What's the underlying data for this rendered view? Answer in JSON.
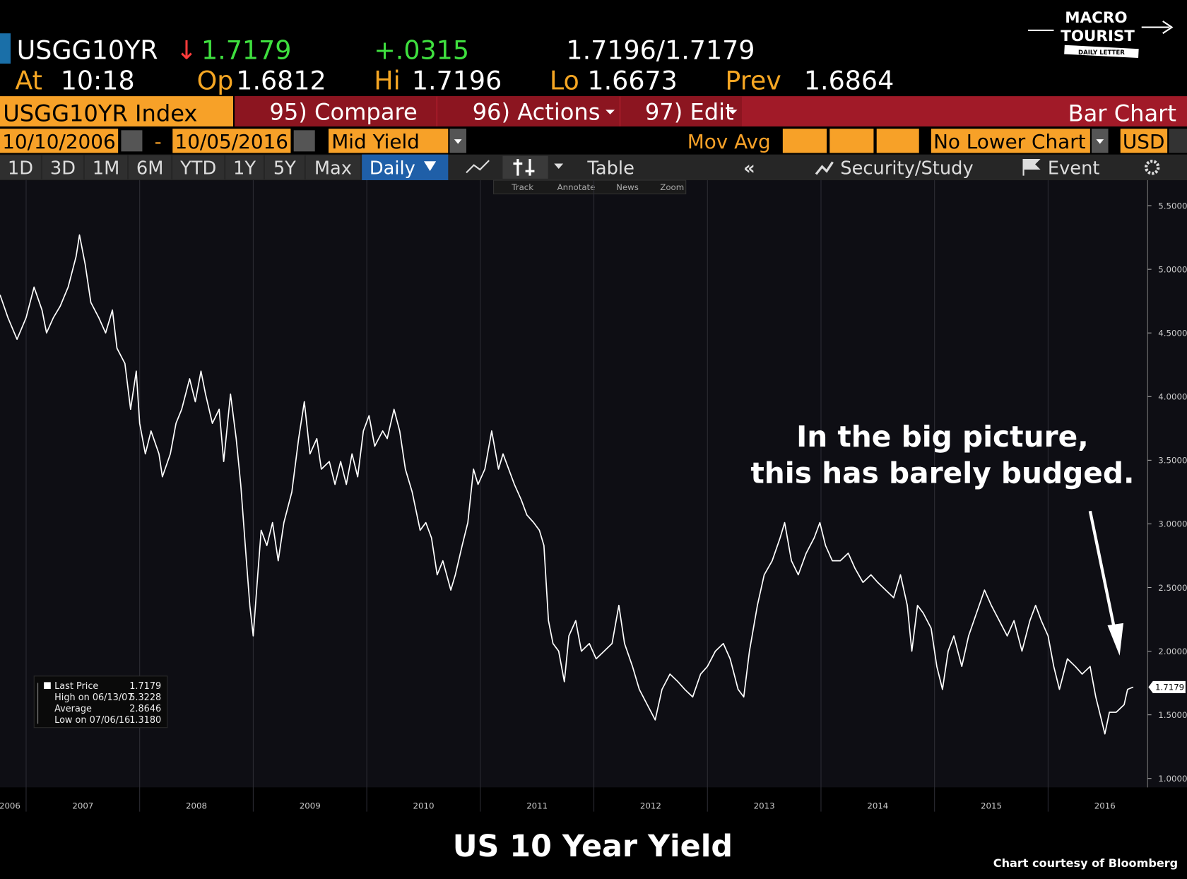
{
  "header": {
    "ticker": "USGG10YR",
    "direction": "↓",
    "last": "1.7179",
    "change": "+.0315",
    "bid_ask": "1.7196/1.7179",
    "at_label": "At",
    "time": "10:18",
    "open_label": "Op",
    "open": "1.6812",
    "high_label": "Hi",
    "high": "1.7196",
    "low_label": "Lo",
    "low": "1.6673",
    "prev_label": "Prev",
    "prev": "1.6864"
  },
  "logo": {
    "line1": "MACRO",
    "line2": "TOURIST",
    "line3": "DAILY LETTER"
  },
  "toolbar": {
    "security": "USGG10YR Index",
    "buttons": [
      "95) Compare",
      "96) Actions",
      "97) Edit"
    ],
    "chart_type": "Bar Chart",
    "start_date": "10/10/2006",
    "separator": "-",
    "end_date": "10/05/2016",
    "field": "Mid Yield",
    "mov_avg": "Mov Avg",
    "lower_chart": "No Lower Chart",
    "currency": "USD",
    "periods": [
      "1D",
      "3D",
      "1M",
      "6M",
      "YTD",
      "1Y",
      "5Y",
      "Max"
    ],
    "frequency": "Daily",
    "table": "Table",
    "security_study": "Security/Study",
    "event": "Event",
    "tools": [
      "Track",
      "Annotate",
      "News",
      "Zoom"
    ]
  },
  "chart_data": {
    "type": "line",
    "title": "US 10 Year Yield",
    "credit": "Chart courtesy of Bloomberg",
    "annotation": [
      "In the big picture,",
      "this has barely budged."
    ],
    "color": "#ffffff",
    "xgrid": true,
    "stats": [
      {
        "label": "Last Price",
        "value": "1.7179"
      },
      {
        "label": "High on 06/13/07",
        "value": "5.3228"
      },
      {
        "label": "Average",
        "value": "2.8646"
      },
      {
        "label": "Low on 07/06/16",
        "value": "1.3180"
      }
    ],
    "last_tag": "1.7179",
    "xlim": [
      2006.77,
      2016.87
    ],
    "xticks": [
      2006,
      2007,
      2008,
      2009,
      2010,
      2011,
      2012,
      2013,
      2014,
      2015,
      2016
    ],
    "ylim": [
      0.93,
      5.7
    ],
    "yticks": [
      {
        "value": 1,
        "label": "1.0000"
      },
      {
        "value": 1.5,
        "label": "1.5000"
      },
      {
        "value": 2,
        "label": "2.0000"
      },
      {
        "value": 2.5,
        "label": "2.5000"
      },
      {
        "value": 3,
        "label": "3.0000"
      },
      {
        "value": 3.5,
        "label": "3.5000"
      },
      {
        "value": 4,
        "label": "4.0000"
      },
      {
        "value": 4.5,
        "label": "4.5000"
      },
      {
        "value": 5,
        "label": "5.0000"
      },
      {
        "value": 5.5,
        "label": "5.5000"
      }
    ],
    "x": [
      2006.77,
      2006.84,
      2006.92,
      2007.0,
      2007.07,
      2007.14,
      2007.18,
      2007.24,
      2007.3,
      2007.37,
      2007.44,
      2007.47,
      2007.52,
      2007.57,
      2007.64,
      2007.7,
      2007.76,
      2007.8,
      2007.87,
      2007.92,
      2007.97,
      2008.0,
      2008.05,
      2008.1,
      2008.17,
      2008.2,
      2008.27,
      2008.32,
      2008.37,
      2008.44,
      2008.49,
      2008.54,
      2008.58,
      2008.64,
      2008.7,
      2008.74,
      2008.8,
      2008.85,
      2008.89,
      2008.94,
      2008.97,
      2009.0,
      2009.04,
      2009.07,
      2009.12,
      2009.17,
      2009.22,
      2009.27,
      2009.34,
      2009.4,
      2009.45,
      2009.5,
      2009.56,
      2009.6,
      2009.67,
      2009.72,
      2009.77,
      2009.82,
      2009.87,
      2009.92,
      2009.97,
      2010.02,
      2010.07,
      2010.14,
      2010.18,
      2010.24,
      2010.29,
      2010.34,
      2010.4,
      2010.47,
      2010.52,
      2010.57,
      2010.62,
      2010.67,
      2010.74,
      2010.78,
      2010.84,
      2010.89,
      2010.94,
      2010.98,
      2011.04,
      2011.1,
      2011.16,
      2011.2,
      2011.25,
      2011.3,
      2011.36,
      2011.41,
      2011.47,
      2011.52,
      2011.56,
      2011.6,
      2011.64,
      2011.69,
      2011.74,
      2011.78,
      2011.84,
      2011.89,
      2011.96,
      2012.02,
      2012.09,
      2012.16,
      2012.22,
      2012.27,
      2012.34,
      2012.4,
      2012.47,
      2012.54,
      2012.6,
      2012.67,
      2012.74,
      2012.8,
      2012.87,
      2012.94,
      2013.0,
      2013.07,
      2013.14,
      2013.2,
      2013.27,
      2013.32,
      2013.37,
      2013.44,
      2013.5,
      2013.57,
      2013.64,
      2013.68,
      2013.74,
      2013.8,
      2013.87,
      2013.94,
      2013.99,
      2014.04,
      2014.1,
      2014.17,
      2014.24,
      2014.3,
      2014.37,
      2014.44,
      2014.5,
      2014.57,
      2014.64,
      2014.7,
      2014.76,
      2014.8,
      2014.85,
      2014.9,
      2014.97,
      2015.02,
      2015.07,
      2015.12,
      2015.17,
      2015.24,
      2015.3,
      2015.37,
      2015.44,
      2015.5,
      2015.57,
      2015.64,
      2015.7,
      2015.77,
      2015.84,
      2015.89,
      2015.94,
      2016.0,
      2016.05,
      2016.1,
      2016.17,
      2016.24,
      2016.3,
      2016.37,
      2016.42,
      2016.47,
      2016.5,
      2016.54,
      2016.6,
      2016.67,
      2016.7,
      2016.75
    ],
    "values": [
      4.8,
      4.62,
      4.45,
      4.62,
      4.86,
      4.68,
      4.5,
      4.62,
      4.71,
      4.86,
      5.1,
      5.27,
      5.04,
      4.74,
      4.62,
      4.5,
      4.68,
      4.38,
      4.26,
      3.9,
      4.2,
      3.79,
      3.55,
      3.73,
      3.55,
      3.37,
      3.55,
      3.79,
      3.9,
      4.14,
      3.96,
      4.2,
      4.02,
      3.79,
      3.9,
      3.49,
      4.02,
      3.67,
      3.31,
      2.71,
      2.36,
      2.12,
      2.6,
      2.95,
      2.83,
      3.01,
      2.71,
      3.01,
      3.25,
      3.67,
      3.96,
      3.55,
      3.67,
      3.43,
      3.49,
      3.31,
      3.49,
      3.31,
      3.55,
      3.37,
      3.73,
      3.85,
      3.61,
      3.73,
      3.67,
      3.9,
      3.73,
      3.43,
      3.25,
      2.95,
      3.01,
      2.89,
      2.6,
      2.71,
      2.48,
      2.6,
      2.83,
      3.01,
      3.43,
      3.31,
      3.43,
      3.73,
      3.43,
      3.55,
      3.43,
      3.31,
      3.19,
      3.07,
      3.01,
      2.95,
      2.83,
      2.24,
      2.06,
      2.0,
      1.76,
      2.12,
      2.24,
      2.0,
      2.06,
      1.94,
      2.0,
      2.06,
      2.36,
      2.06,
      1.88,
      1.7,
      1.58,
      1.46,
      1.7,
      1.82,
      1.76,
      1.7,
      1.64,
      1.82,
      1.88,
      2.0,
      2.06,
      1.94,
      1.7,
      1.64,
      2.0,
      2.36,
      2.6,
      2.71,
      2.89,
      3.01,
      2.71,
      2.6,
      2.77,
      2.89,
      3.01,
      2.83,
      2.71,
      2.71,
      2.77,
      2.65,
      2.54,
      2.6,
      2.54,
      2.48,
      2.42,
      2.6,
      2.36,
      2.0,
      2.36,
      2.3,
      2.18,
      1.88,
      1.7,
      2.0,
      2.12,
      1.88,
      2.12,
      2.3,
      2.48,
      2.36,
      2.24,
      2.12,
      2.24,
      2.0,
      2.24,
      2.36,
      2.24,
      2.12,
      1.88,
      1.7,
      1.94,
      1.88,
      1.82,
      1.88,
      1.64,
      1.46,
      1.35,
      1.52,
      1.52,
      1.58,
      1.7,
      1.7179
    ]
  }
}
